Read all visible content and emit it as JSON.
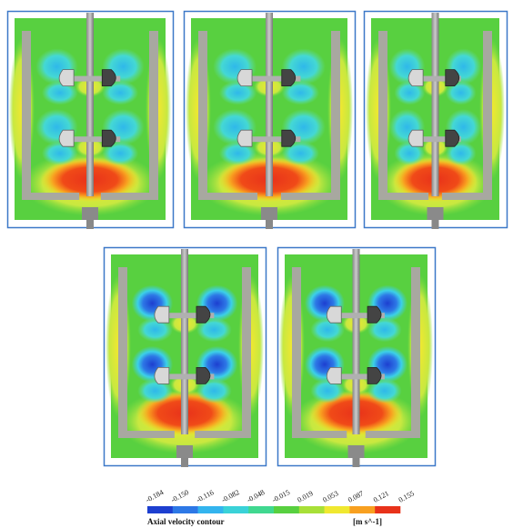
{
  "colorbar": {
    "ticks": [
      "-0.184",
      "-0.150",
      "-0.116",
      "-0.082",
      "-0.048",
      "-0.015",
      "0.019",
      "0.053",
      "0.087",
      "0.121",
      "0.155"
    ],
    "title": "Axial velocity contour",
    "unit": "[m s^-1]"
  }
}
